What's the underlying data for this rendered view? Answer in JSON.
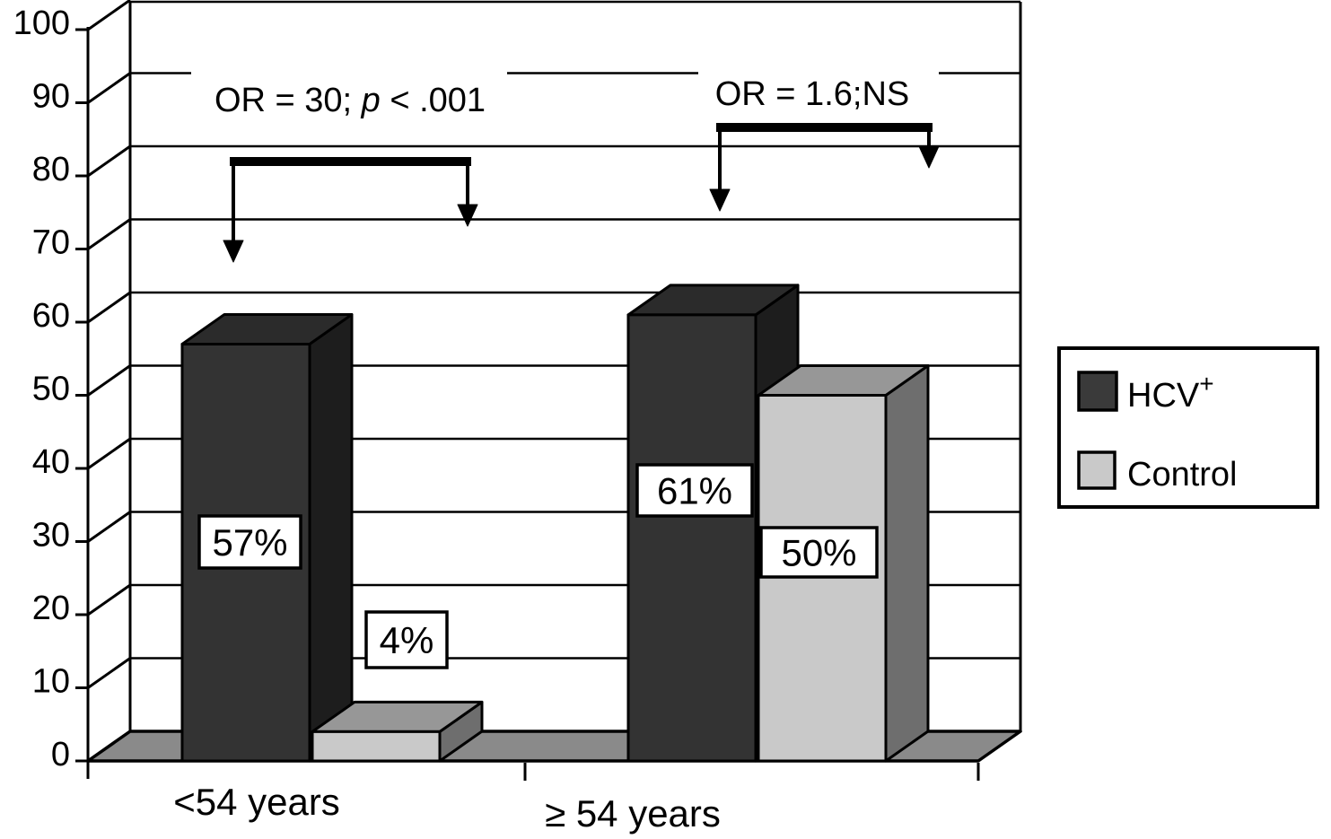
{
  "chart_data": {
    "type": "bar",
    "style": "3d-clustered-column",
    "title": "",
    "xlabel": "",
    "ylabel": "",
    "categories": [
      "<54 years",
      "≥ 54 years"
    ],
    "series": [
      {
        "name": "HCV+",
        "legend_label": "HCV",
        "legend_superscript": "+",
        "values": [
          57,
          61
        ],
        "labels": [
          "57%",
          "61%"
        ],
        "colors": {
          "front": "#333333",
          "top": "#2b2b2b",
          "side": "#1d1d1d",
          "swatch": "#3a3a3a"
        }
      },
      {
        "name": "Control",
        "legend_label": "Control",
        "legend_superscript": "",
        "values": [
          4,
          50
        ],
        "labels": [
          "4%",
          "50%"
        ],
        "colors": {
          "front": "#c9c9c9",
          "top": "#979797",
          "side": "#6e6e6e",
          "swatch": "#c9c9c9"
        }
      }
    ],
    "ylim": [
      0,
      100
    ],
    "ytick_step": 10,
    "yticks": [
      "0",
      "10",
      "20",
      "30",
      "40",
      "50",
      "60",
      "70",
      "80",
      "90",
      "100"
    ],
    "grid": true,
    "legend_position": "right-middle",
    "annotations": [
      {
        "text": "OR = 30; p < .001",
        "parts": [
          {
            "text": "OR = 30; ",
            "italic": false
          },
          {
            "text": "p",
            "italic": true
          },
          {
            "text": " < .001",
            "italic": false
          }
        ]
      },
      {
        "text": "OR = 1.6;NS",
        "parts": [
          {
            "text": "OR = 1.6;NS",
            "italic": false
          }
        ]
      }
    ],
    "colors": {
      "floor": "#8a8a8a",
      "line": "#000000",
      "background": "#ffffff"
    }
  }
}
